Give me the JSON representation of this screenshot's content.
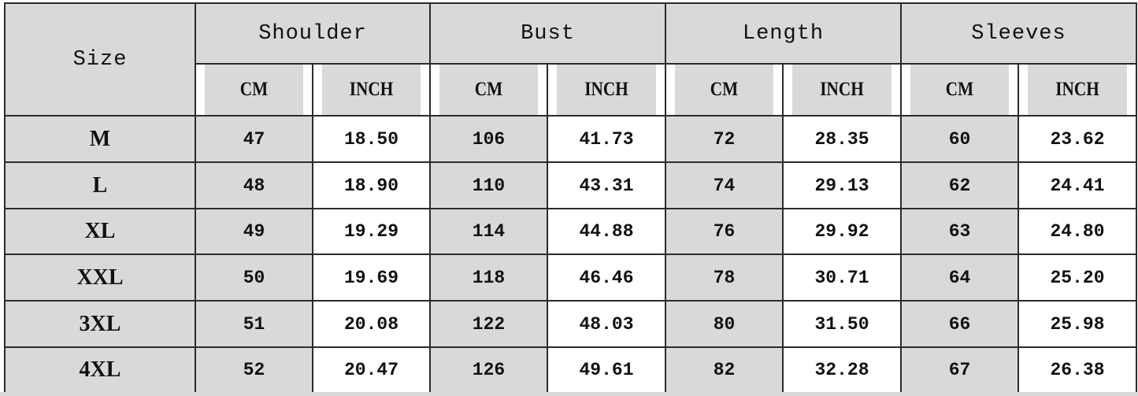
{
  "table": {
    "size_header": "Size",
    "groups": [
      "Shoulder",
      "Bust",
      "Length",
      "Sleeves"
    ],
    "units": [
      "CM",
      "INCH"
    ],
    "rows": [
      {
        "size": "M",
        "values": [
          "47",
          "18.50",
          "106",
          "41.73",
          "72",
          "28.35",
          "60",
          "23.62"
        ]
      },
      {
        "size": "L",
        "values": [
          "48",
          "18.90",
          "110",
          "43.31",
          "74",
          "29.13",
          "62",
          "24.41"
        ]
      },
      {
        "size": "XL",
        "values": [
          "49",
          "19.29",
          "114",
          "44.88",
          "76",
          "29.92",
          "63",
          "24.80"
        ]
      },
      {
        "size": "XXL",
        "values": [
          "50",
          "19.69",
          "118",
          "46.46",
          "78",
          "30.71",
          "64",
          "25.20"
        ]
      },
      {
        "size": "3XL",
        "values": [
          "51",
          "20.08",
          "122",
          "48.03",
          "80",
          "31.50",
          "66",
          "25.98"
        ]
      },
      {
        "size": "4XL",
        "values": [
          "52",
          "20.47",
          "126",
          "49.61",
          "82",
          "32.28",
          "67",
          "26.38"
        ]
      }
    ]
  },
  "colors": {
    "header_fill": "#d9d9d9",
    "inch_fill": "#ffffff",
    "border": "#2b2b2b"
  }
}
